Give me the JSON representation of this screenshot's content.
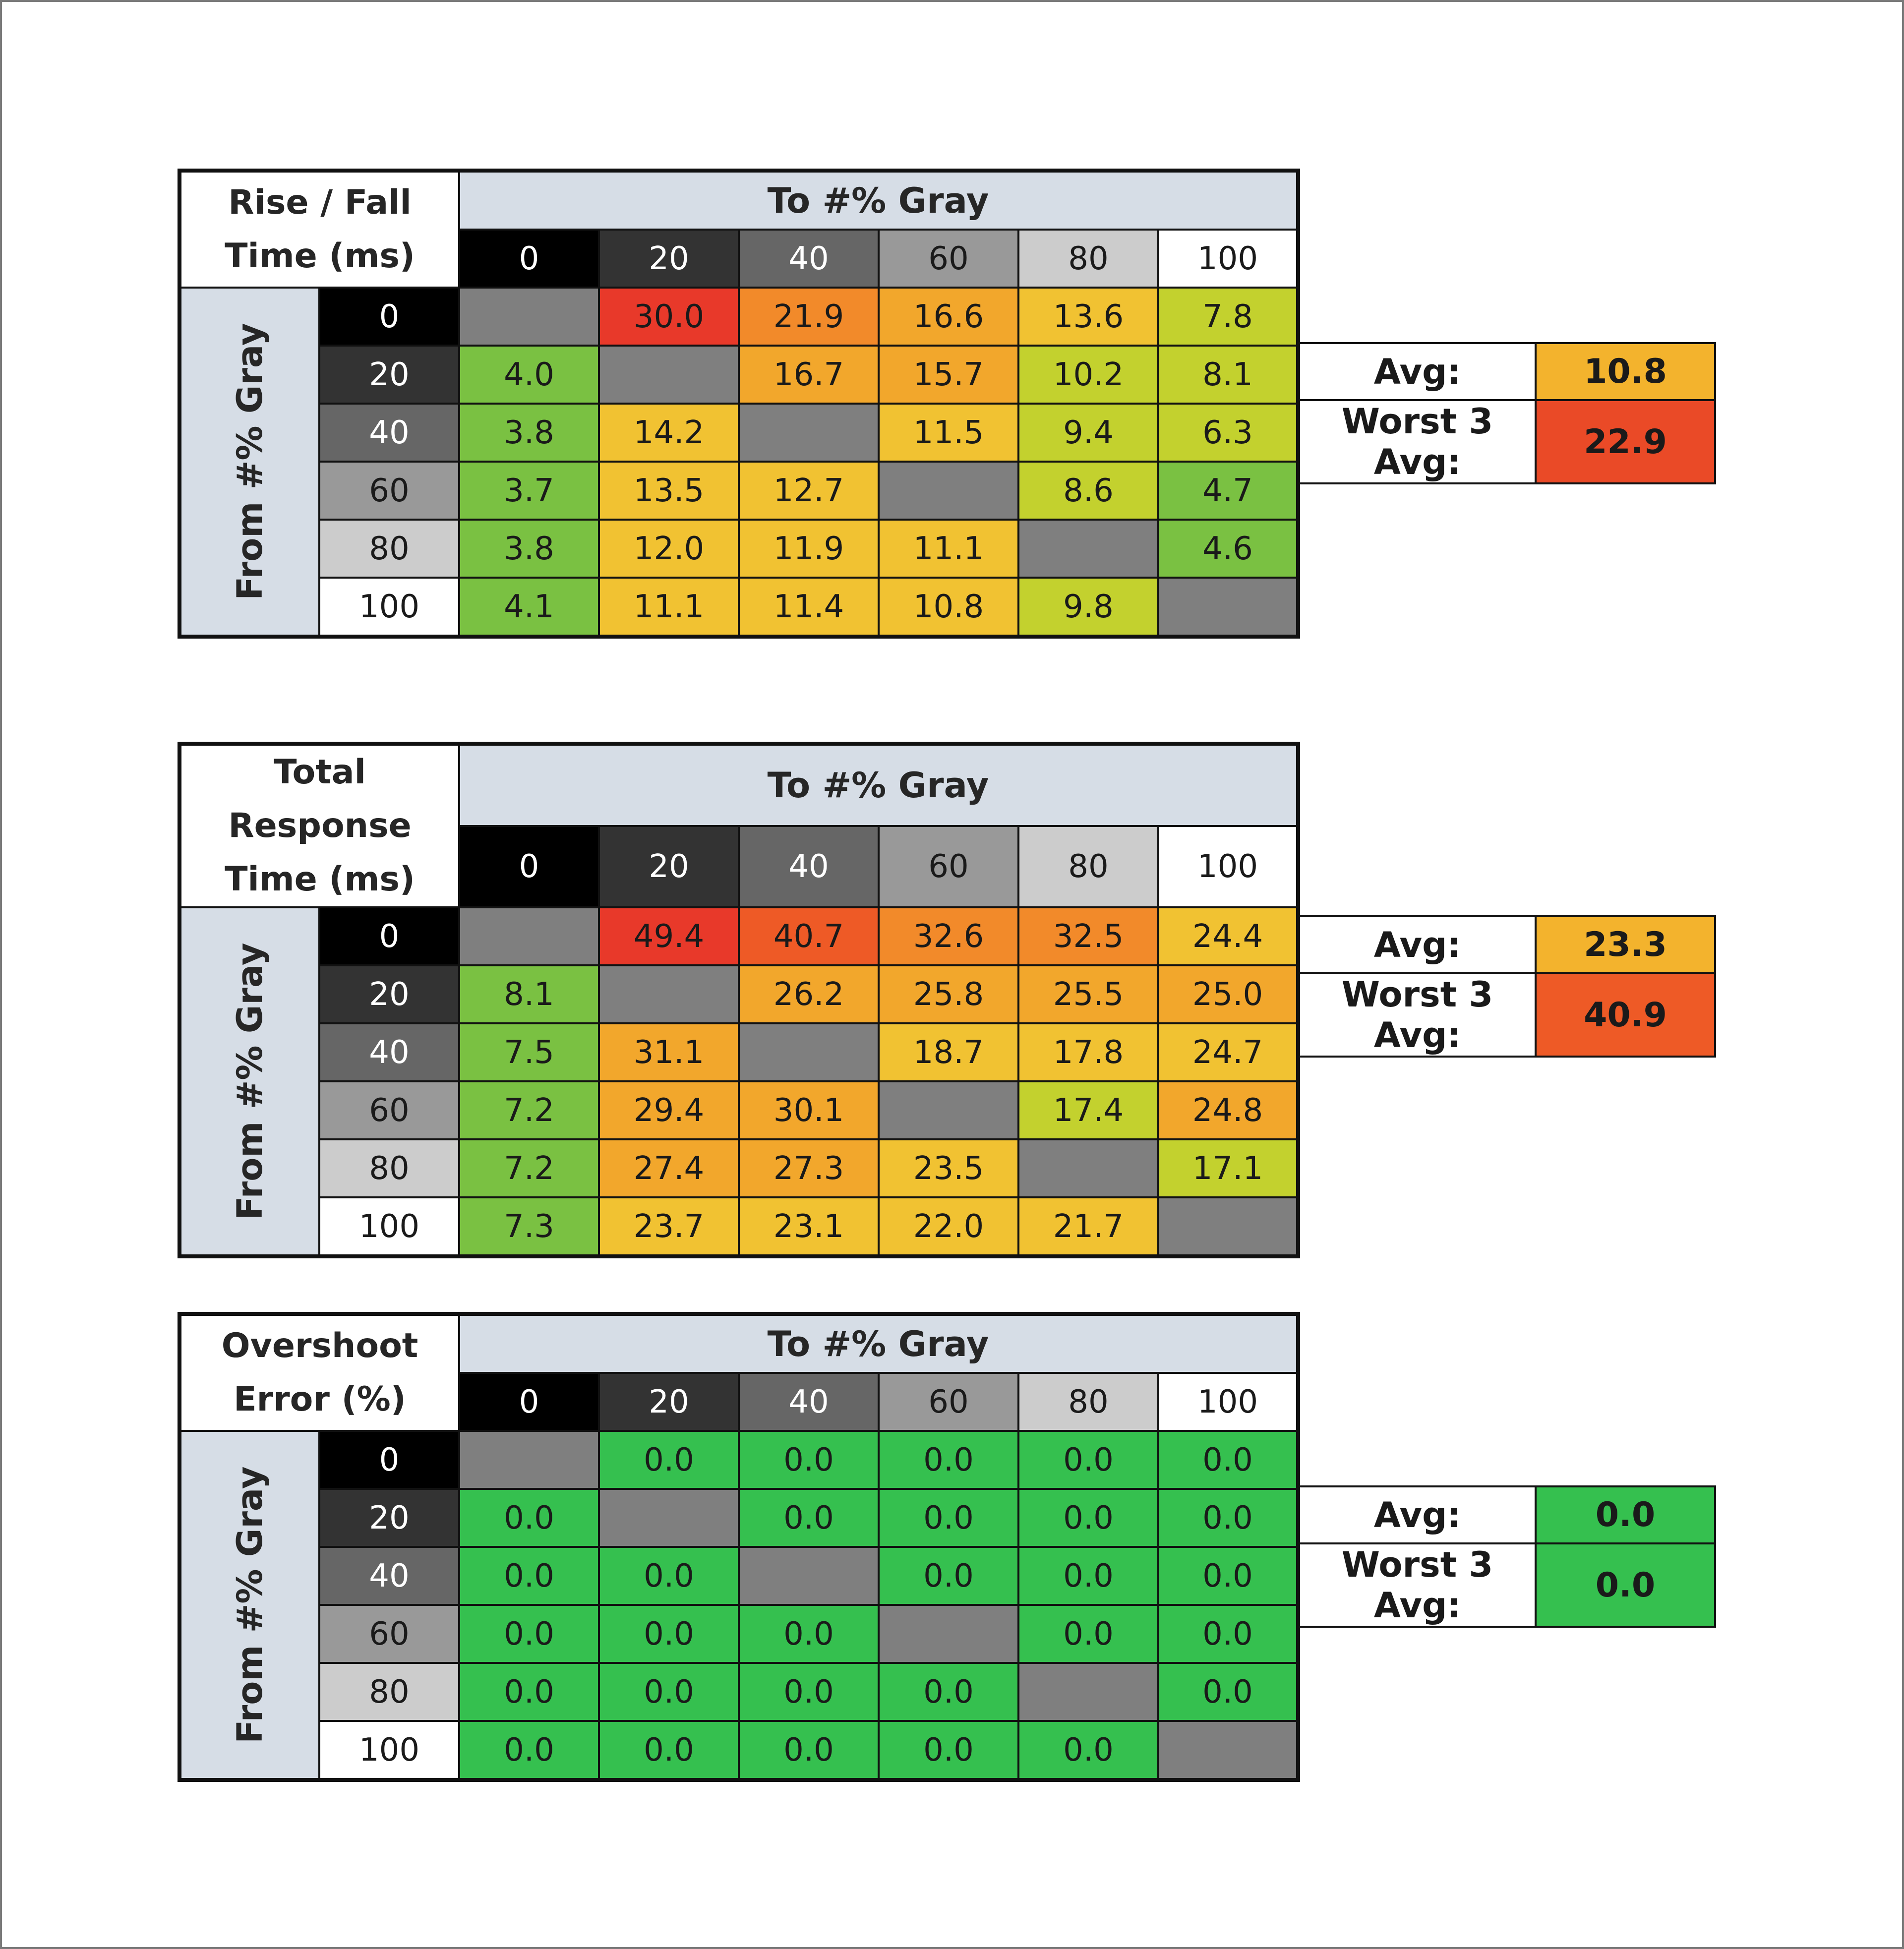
{
  "palette": {
    "diagonal": "#7f7f7f",
    "header_blue": "#d6dde6",
    "gray_levels": {
      "0": {
        "bg": "#000000",
        "fg": "#ffffff"
      },
      "20": {
        "bg": "#333333",
        "fg": "#ffffff"
      },
      "40": {
        "bg": "#666666",
        "fg": "#ffffff"
      },
      "60": {
        "bg": "#999999",
        "fg": "#1a1a1a"
      },
      "80": {
        "bg": "#cccccc",
        "fg": "#1a1a1a"
      },
      "100": {
        "bg": "#ffffff",
        "fg": "#1a1a1a"
      }
    },
    "scale": [
      "#7ac142",
      "#c3d12e",
      "#f1c232",
      "#f2a72c",
      "#f28a2a",
      "#ee5a26",
      "#e8392a"
    ],
    "overshoot_zero": "#35c04f"
  },
  "chart_data": [
    {
      "type": "heatmap",
      "title_lines": [
        "Rise / Fall",
        "Time (ms)"
      ],
      "col_header": "To #% Gray",
      "row_header": "From #% Gray",
      "levels": [
        "0",
        "20",
        "40",
        "60",
        "80",
        "100"
      ],
      "values": [
        [
          null,
          30.0,
          21.9,
          16.6,
          13.6,
          7.8
        ],
        [
          4.0,
          null,
          16.7,
          15.7,
          10.2,
          8.1
        ],
        [
          3.8,
          14.2,
          null,
          11.5,
          9.4,
          6.3
        ],
        [
          3.7,
          13.5,
          12.7,
          null,
          8.6,
          4.7
        ],
        [
          3.8,
          12.0,
          11.9,
          11.1,
          null,
          4.6
        ],
        [
          4.1,
          11.1,
          11.4,
          10.8,
          9.8,
          null
        ]
      ],
      "value_range": [
        3.7,
        30.0
      ],
      "summary": [
        {
          "label": "Avg:",
          "value": 10.8,
          "color": "#f3b32d"
        },
        {
          "label": "Worst 3 Avg:",
          "value": 22.9,
          "color": "#ea4a27"
        }
      ]
    },
    {
      "type": "heatmap",
      "title_lines": [
        "Total Response",
        "Time (ms)"
      ],
      "col_header": "To #% Gray",
      "row_header": "From #% Gray",
      "levels": [
        "0",
        "20",
        "40",
        "60",
        "80",
        "100"
      ],
      "values": [
        [
          null,
          49.4,
          40.7,
          32.6,
          32.5,
          24.4
        ],
        [
          8.1,
          null,
          26.2,
          25.8,
          25.5,
          25.0
        ],
        [
          7.5,
          31.1,
          null,
          18.7,
          17.8,
          24.7
        ],
        [
          7.2,
          29.4,
          30.1,
          null,
          17.4,
          24.8
        ],
        [
          7.2,
          27.4,
          27.3,
          23.5,
          null,
          17.1
        ],
        [
          7.3,
          23.7,
          23.1,
          22.0,
          21.7,
          null
        ]
      ],
      "value_range": [
        7.2,
        49.4
      ],
      "summary": [
        {
          "label": "Avg:",
          "value": 23.3,
          "color": "#f3b32d"
        },
        {
          "label": "Worst 3 Avg:",
          "value": 40.9,
          "color": "#ee5a26"
        }
      ]
    },
    {
      "type": "heatmap",
      "title_lines": [
        "Overshoot",
        "Error (%)"
      ],
      "col_header": "To #% Gray",
      "row_header": "From #% Gray",
      "levels": [
        "0",
        "20",
        "40",
        "60",
        "80",
        "100"
      ],
      "values": [
        [
          null,
          0.0,
          0.0,
          0.0,
          0.0,
          0.0
        ],
        [
          0.0,
          null,
          0.0,
          0.0,
          0.0,
          0.0
        ],
        [
          0.0,
          0.0,
          null,
          0.0,
          0.0,
          0.0
        ],
        [
          0.0,
          0.0,
          0.0,
          null,
          0.0,
          0.0
        ],
        [
          0.0,
          0.0,
          0.0,
          0.0,
          null,
          0.0
        ],
        [
          0.0,
          0.0,
          0.0,
          0.0,
          0.0,
          null
        ]
      ],
      "value_range": [
        0.0,
        0.0
      ],
      "summary": [
        {
          "label": "Avg:",
          "value": 0.0,
          "color": "#35c04f"
        },
        {
          "label": "Worst 3 Avg:",
          "value": 0.0,
          "color": "#35c04f"
        }
      ]
    }
  ]
}
